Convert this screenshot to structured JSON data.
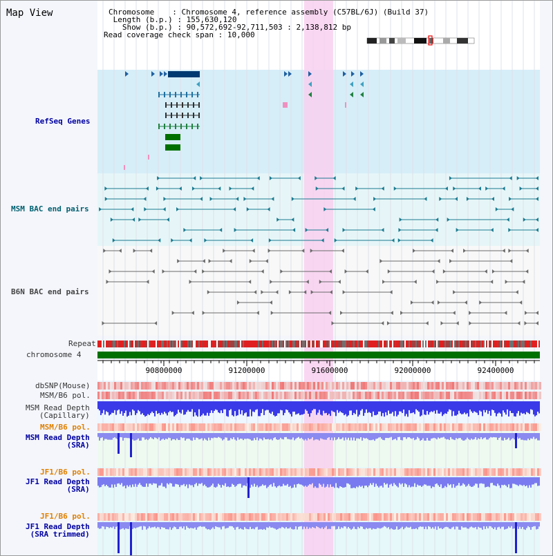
{
  "title": "Map View",
  "header": {
    "chromosome_label": "Chromosome",
    "chromosome_value": "Chromosome 4, reference assembly (C57BL/6J) (Build 37)",
    "length_label": "Length (b.p.)",
    "length_value": "155,630,120",
    "show_label": "Show (b.p.)",
    "show_value": "90,572,692-92,711,503 : 2,138,812 bp",
    "coverage_label": "Read coverage check span",
    "coverage_value": "10,000"
  },
  "tracks": {
    "refseq": "RefSeq Genes",
    "msm_bac": "MSM BAC end pairs",
    "b6n_bac": "B6N BAC end pairs",
    "repeat": "Repeat",
    "chromosome": "chromosome 4",
    "dbsnp": "dbSNP(Mouse)",
    "msm_b6_pol_1": "MSM/B6 pol.",
    "msm_depth_cap_1": "MSM Read Depth",
    "msm_depth_cap_2": "(Capillary)",
    "msm_b6_pol_2": "MSM/B6 pol.",
    "msm_depth_sra_1": "MSM Read Depth",
    "msm_depth_sra_2": "(SRA)",
    "jf1_b6_pol_1": "JF1/B6 pol.",
    "jf1_depth_sra_1": "JF1 Read Depth",
    "jf1_depth_sra_2": "(SRA)",
    "jf1_b6_pol_2": "JF1/B6 pol.",
    "jf1_depth_trim_1": "JF1 Read Depth",
    "jf1_depth_trim_2": "(SRA trimmed)"
  },
  "axis": {
    "ticks": [
      "90800000",
      "91200000",
      "91600000",
      "92000000",
      "92400000"
    ]
  },
  "colors": {
    "refseq_bg": "#d6eef8",
    "bac_bg": "#e6f6f8",
    "highlight": "#f8d0f0",
    "gene": "#003a70",
    "chromosome": "#007000",
    "depth": "#6060f0"
  }
}
